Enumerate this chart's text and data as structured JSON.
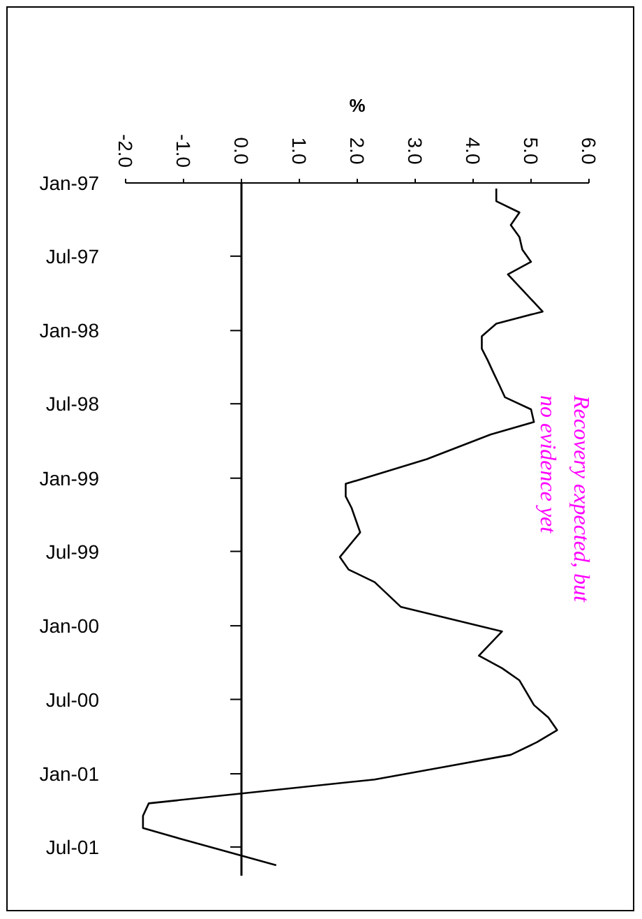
{
  "chart_data": {
    "type": "line",
    "xlabel": "%",
    "orientation": "horizontal",
    "x": [
      "1997-01-15",
      "1997-02-15",
      "1997-03-15",
      "1997-04-15",
      "1997-05-15",
      "1997-06-15",
      "1997-07-15",
      "1997-08-15",
      "1997-11-15",
      "1997-12-15",
      "1998-01-15",
      "1998-02-15",
      "1998-03-15",
      "1998-04-15",
      "1998-05-15",
      "1998-06-15",
      "1998-07-15",
      "1998-08-15",
      "1998-09-15",
      "1998-11-15",
      "1999-01-15",
      "1999-02-15",
      "1999-03-15",
      "1999-05-15",
      "1999-07-15",
      "1999-08-15",
      "1999-09-15",
      "1999-11-15",
      "2000-01-15",
      "2000-03-15",
      "2000-04-15",
      "2000-05-15",
      "2000-07-15",
      "2000-08-15",
      "2000-09-15",
      "2000-10-15",
      "2000-11-15",
      "2000-12-15",
      "2001-01-15",
      "2001-03-15",
      "2001-04-15",
      "2001-05-15",
      "2001-06-15",
      "2001-08-15"
    ],
    "series": [
      {
        "color": "#000000",
        "values": [
          4.4,
          4.4,
          4.8,
          4.65,
          4.8,
          4.85,
          5.0,
          4.6,
          5.2,
          4.4,
          4.15,
          4.15,
          4.25,
          4.35,
          4.45,
          4.55,
          5.0,
          5.05,
          4.3,
          3.2,
          1.8,
          1.8,
          1.9,
          2.05,
          1.7,
          1.85,
          2.3,
          2.75,
          4.5,
          4.1,
          4.5,
          4.8,
          5.05,
          5.3,
          5.45,
          5.1,
          4.65,
          3.5,
          2.3,
          -1.6,
          -1.7,
          -1.7,
          -0.95,
          0.6
        ]
      }
    ],
    "ylim": [
      "2001-09-10",
      "1997-01-01"
    ],
    "yticks": [
      {
        "value": "1997-01-01",
        "label": "Jan-97"
      },
      {
        "value": "1997-07-01",
        "label": "Jul-97"
      },
      {
        "value": "1998-01-01",
        "label": "Jan-98"
      },
      {
        "value": "1998-07-01",
        "label": "Jul-98"
      },
      {
        "value": "1999-01-01",
        "label": "Jan-99"
      },
      {
        "value": "1999-07-01",
        "label": "Jul-99"
      },
      {
        "value": "2000-01-01",
        "label": "Jan-00"
      },
      {
        "value": "2000-07-01",
        "label": "Jul-00"
      },
      {
        "value": "2001-01-01",
        "label": "Jan-01"
      },
      {
        "value": "2001-07-01",
        "label": "Jul-01"
      }
    ],
    "xlim": [
      -2,
      6
    ],
    "xticks": [
      {
        "value": -2,
        "label": "-2.0"
      },
      {
        "value": -1,
        "label": "-1.0"
      },
      {
        "value": 0,
        "label": "0.0"
      },
      {
        "value": 1,
        "label": "1.0"
      },
      {
        "value": 2,
        "label": "2.0"
      },
      {
        "value": 3,
        "label": "3.0"
      },
      {
        "value": 4,
        "label": "4.0"
      },
      {
        "value": 5,
        "label": "5.0"
      },
      {
        "value": 6,
        "label": "6.0"
      }
    ],
    "annotations": [
      "Recovery expected, but no evidence yet"
    ],
    "marker": "none",
    "line_style": "solid"
  }
}
